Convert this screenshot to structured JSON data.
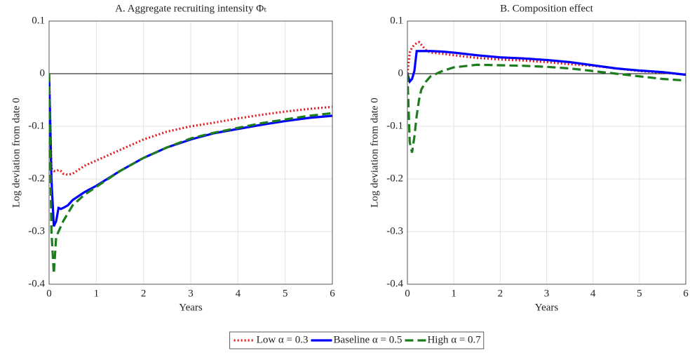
{
  "chart_data": [
    {
      "type": "line",
      "title": "A. Aggregate recruiting intensity Φₜ",
      "xlabel": "Years",
      "ylabel": "Log deviation from date 0",
      "x": [
        0,
        0.05,
        0.1,
        0.15,
        0.2,
        0.25,
        0.3,
        0.4,
        0.5,
        0.75,
        1,
        1.5,
        2,
        2.5,
        3,
        3.5,
        4,
        4.5,
        5,
        5.5,
        6
      ],
      "series": [
        {
          "name": "Low α = 0.3",
          "color": "#e3191b",
          "dash": "dotted",
          "values": [
            0,
            -0.18,
            -0.185,
            -0.185,
            -0.183,
            -0.185,
            -0.19,
            -0.192,
            -0.19,
            -0.175,
            -0.165,
            -0.145,
            -0.125,
            -0.11,
            -0.1,
            -0.093,
            -0.085,
            -0.078,
            -0.072,
            -0.067,
            -0.063
          ]
        },
        {
          "name": "Baseline α = 0.5",
          "color": "#0000ff",
          "dash": "solid",
          "values": [
            0,
            -0.2,
            -0.29,
            -0.28,
            -0.255,
            -0.257,
            -0.255,
            -0.25,
            -0.24,
            -0.225,
            -0.213,
            -0.185,
            -0.16,
            -0.14,
            -0.125,
            -0.113,
            -0.105,
            -0.097,
            -0.09,
            -0.084,
            -0.08
          ]
        },
        {
          "name": "High α = 0.7",
          "color": "#1b7d1b",
          "dash": "dashed",
          "values": [
            0,
            -0.3,
            -0.38,
            -0.31,
            -0.3,
            -0.29,
            -0.28,
            -0.265,
            -0.25,
            -0.23,
            -0.215,
            -0.185,
            -0.16,
            -0.14,
            -0.123,
            -0.112,
            -0.103,
            -0.094,
            -0.087,
            -0.08,
            -0.075
          ]
        }
      ],
      "xlim": [
        0,
        6
      ],
      "xticks": [
        0,
        1,
        2,
        3,
        4,
        5,
        6
      ],
      "ylim": [
        -0.4,
        0.1
      ],
      "yticks": [
        -0.4,
        -0.3,
        -0.2,
        -0.1,
        0,
        0.1
      ],
      "grid": true,
      "zero_line": true,
      "legend": "bottom"
    },
    {
      "type": "line",
      "title": "B. Composition effect",
      "xlabel": "Years",
      "ylabel": "Log deviation from date 0",
      "x": [
        0,
        0.05,
        0.1,
        0.15,
        0.2,
        0.25,
        0.3,
        0.4,
        0.5,
        0.75,
        1,
        1.5,
        2,
        2.5,
        3,
        3.5,
        4,
        4.5,
        5,
        5.5,
        6
      ],
      "series": [
        {
          "color": "#e3191b",
          "dash": "dotted",
          "values": [
            0,
            0.04,
            0.05,
            0.055,
            0.058,
            0.06,
            0.055,
            0.045,
            0.04,
            0.038,
            0.035,
            0.03,
            0.027,
            0.025,
            0.022,
            0.018,
            0.015,
            0.01,
            0.005,
            0.002,
            -0.002
          ]
        },
        {
          "color": "#0000ff",
          "dash": "solid",
          "values": [
            0,
            -0.015,
            -0.01,
            0.005,
            0.043,
            0.043,
            0.043,
            0.043,
            0.043,
            0.042,
            0.04,
            0.035,
            0.031,
            0.029,
            0.026,
            0.022,
            0.016,
            0.01,
            0.006,
            0.003,
            -0.002
          ]
        },
        {
          "color": "#1b7d1b",
          "dash": "dashed",
          "values": [
            0,
            -0.13,
            -0.15,
            -0.12,
            -0.08,
            -0.05,
            -0.03,
            -0.015,
            -0.005,
            0.005,
            0.012,
            0.017,
            0.016,
            0.015,
            0.013,
            0.01,
            0.005,
            0,
            -0.005,
            -0.01,
            -0.013
          ]
        }
      ],
      "xlim": [
        0,
        6
      ],
      "xticks": [
        0,
        1,
        2,
        3,
        4,
        5,
        6
      ],
      "ylim": [
        -0.4,
        0.1
      ],
      "yticks": [
        -0.4,
        -0.3,
        -0.2,
        -0.1,
        0,
        0.1
      ],
      "grid": true,
      "zero_line": true
    }
  ]
}
